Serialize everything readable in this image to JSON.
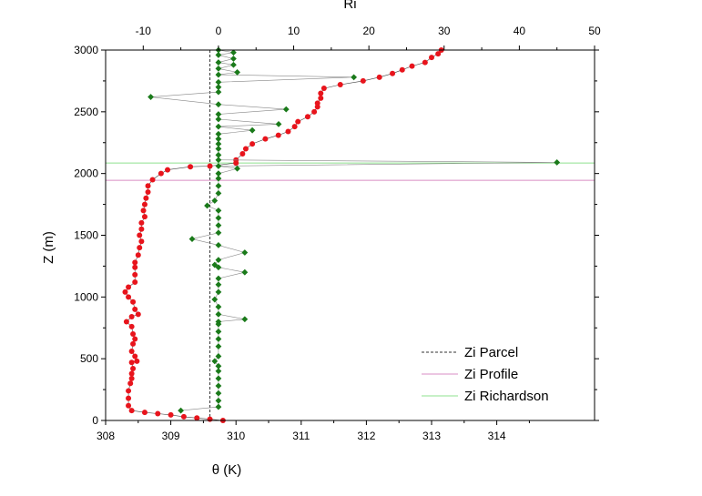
{
  "chart_data": {
    "type": "scatter",
    "axes": {
      "bottom": {
        "label": "θ (K)",
        "range": [
          308,
          315.5
        ],
        "ticks": [
          308,
          309,
          310,
          311,
          312,
          313,
          314
        ]
      },
      "left": {
        "label": "Z (m)",
        "range": [
          0,
          3000
        ],
        "ticks": [
          0,
          500,
          1000,
          1500,
          2000,
          2500,
          3000
        ]
      },
      "top": {
        "label": "Ri",
        "range": [
          -15,
          50
        ],
        "ticks": [
          -10,
          0,
          10,
          20,
          30,
          40,
          50
        ]
      }
    },
    "grid": false,
    "legend_position": "bottom-right",
    "reference_lines": [
      {
        "name": "Zi Parcel",
        "orientation": "vertical",
        "axis": "bottom",
        "value": 309.6,
        "color": "#333333",
        "style": "dashed"
      },
      {
        "name": "Zi Profile",
        "orientation": "horizontal",
        "axis": "left",
        "value": 1945,
        "color": "#d98ec4",
        "style": "solid"
      },
      {
        "name": "Zi Richardson",
        "orientation": "horizontal",
        "axis": "left",
        "value": 2085,
        "color": "#8fe08f",
        "style": "solid"
      }
    ],
    "series": [
      {
        "axis_x": "bottom",
        "color": "#e8141c",
        "marker": "circle",
        "points": [
          [
            309.8,
            0
          ],
          [
            309.6,
            10
          ],
          [
            309.4,
            20
          ],
          [
            309.2,
            30
          ],
          [
            309.0,
            45
          ],
          [
            308.8,
            55
          ],
          [
            308.6,
            65
          ],
          [
            308.4,
            80
          ],
          [
            308.35,
            120
          ],
          [
            308.35,
            180
          ],
          [
            308.35,
            240
          ],
          [
            308.38,
            300
          ],
          [
            308.4,
            340
          ],
          [
            308.4,
            380
          ],
          [
            308.42,
            420
          ],
          [
            308.4,
            470
          ],
          [
            308.48,
            480
          ],
          [
            308.45,
            520
          ],
          [
            308.4,
            560
          ],
          [
            308.42,
            620
          ],
          [
            308.45,
            660
          ],
          [
            308.42,
            700
          ],
          [
            308.4,
            760
          ],
          [
            308.32,
            800
          ],
          [
            308.4,
            840
          ],
          [
            308.5,
            860
          ],
          [
            308.45,
            900
          ],
          [
            308.42,
            960
          ],
          [
            308.35,
            1000
          ],
          [
            308.3,
            1040
          ],
          [
            308.35,
            1080
          ],
          [
            308.45,
            1120
          ],
          [
            308.45,
            1180
          ],
          [
            308.45,
            1240
          ],
          [
            308.45,
            1280
          ],
          [
            308.5,
            1340
          ],
          [
            308.52,
            1400
          ],
          [
            308.55,
            1450
          ],
          [
            308.52,
            1500
          ],
          [
            308.55,
            1550
          ],
          [
            308.55,
            1600
          ],
          [
            308.6,
            1650
          ],
          [
            308.58,
            1700
          ],
          [
            308.6,
            1750
          ],
          [
            308.62,
            1800
          ],
          [
            308.65,
            1850
          ],
          [
            308.65,
            1900
          ],
          [
            308.72,
            1950
          ],
          [
            308.85,
            2000
          ],
          [
            308.95,
            2030
          ],
          [
            309.3,
            2055
          ],
          [
            309.6,
            2060
          ],
          [
            310.0,
            2085
          ],
          [
            310.0,
            2110
          ],
          [
            310.1,
            2160
          ],
          [
            310.15,
            2200
          ],
          [
            310.25,
            2240
          ],
          [
            310.45,
            2280
          ],
          [
            310.65,
            2310
          ],
          [
            310.8,
            2340
          ],
          [
            310.9,
            2380
          ],
          [
            310.95,
            2420
          ],
          [
            311.1,
            2460
          ],
          [
            311.2,
            2500
          ],
          [
            311.25,
            2540
          ],
          [
            311.25,
            2570
          ],
          [
            311.3,
            2610
          ],
          [
            311.3,
            2650
          ],
          [
            311.35,
            2690
          ],
          [
            311.6,
            2720
          ],
          [
            311.95,
            2750
          ],
          [
            312.2,
            2780
          ],
          [
            312.4,
            2810
          ],
          [
            312.55,
            2840
          ],
          [
            312.7,
            2870
          ],
          [
            312.9,
            2900
          ],
          [
            313.0,
            2940
          ],
          [
            313.1,
            2970
          ],
          [
            313.15,
            3000
          ]
        ]
      },
      {
        "axis_x": "top",
        "color": "#1a7a1a",
        "marker": "diamond",
        "points": [
          [
            -5,
            80
          ],
          [
            0,
            110
          ],
          [
            0,
            160
          ],
          [
            0,
            220
          ],
          [
            0,
            280
          ],
          [
            0,
            340
          ],
          [
            0,
            400
          ],
          [
            0,
            440
          ],
          [
            -0.5,
            480
          ],
          [
            0,
            520
          ],
          [
            0,
            600
          ],
          [
            0,
            660
          ],
          [
            0,
            720
          ],
          [
            0,
            780
          ],
          [
            0,
            800
          ],
          [
            3.5,
            820
          ],
          [
            0,
            860
          ],
          [
            0,
            920
          ],
          [
            -0.5,
            980
          ],
          [
            0,
            1040
          ],
          [
            0,
            1100
          ],
          [
            0,
            1150
          ],
          [
            3.5,
            1200
          ],
          [
            0,
            1240
          ],
          [
            -0.5,
            1260
          ],
          [
            0,
            1300
          ],
          [
            3.5,
            1360
          ],
          [
            0,
            1420
          ],
          [
            -3.5,
            1470
          ],
          [
            0,
            1520
          ],
          [
            0,
            1580
          ],
          [
            0,
            1640
          ],
          [
            0,
            1700
          ],
          [
            -1.5,
            1740
          ],
          [
            -0.5,
            1780
          ],
          [
            0,
            1840
          ],
          [
            0,
            1900
          ],
          [
            0,
            1960
          ],
          [
            0,
            2000
          ],
          [
            2.5,
            2040
          ],
          [
            0,
            2060
          ],
          [
            45,
            2090
          ],
          [
            0,
            2110
          ],
          [
            0,
            2150
          ],
          [
            0,
            2200
          ],
          [
            0,
            2240
          ],
          [
            0,
            2280
          ],
          [
            0,
            2320
          ],
          [
            4.5,
            2350
          ],
          [
            0,
            2380
          ],
          [
            8,
            2400
          ],
          [
            0,
            2440
          ],
          [
            0,
            2480
          ],
          [
            9,
            2520
          ],
          [
            0,
            2560
          ],
          [
            -9,
            2620
          ],
          [
            0,
            2660
          ],
          [
            0,
            2700
          ],
          [
            0,
            2740
          ],
          [
            18,
            2780
          ],
          [
            0,
            2800
          ],
          [
            2.5,
            2820
          ],
          [
            0,
            2850
          ],
          [
            2,
            2880
          ],
          [
            0,
            2900
          ],
          [
            2,
            2930
          ],
          [
            0,
            2960
          ],
          [
            2,
            2980
          ],
          [
            0,
            3000
          ]
        ]
      }
    ]
  }
}
